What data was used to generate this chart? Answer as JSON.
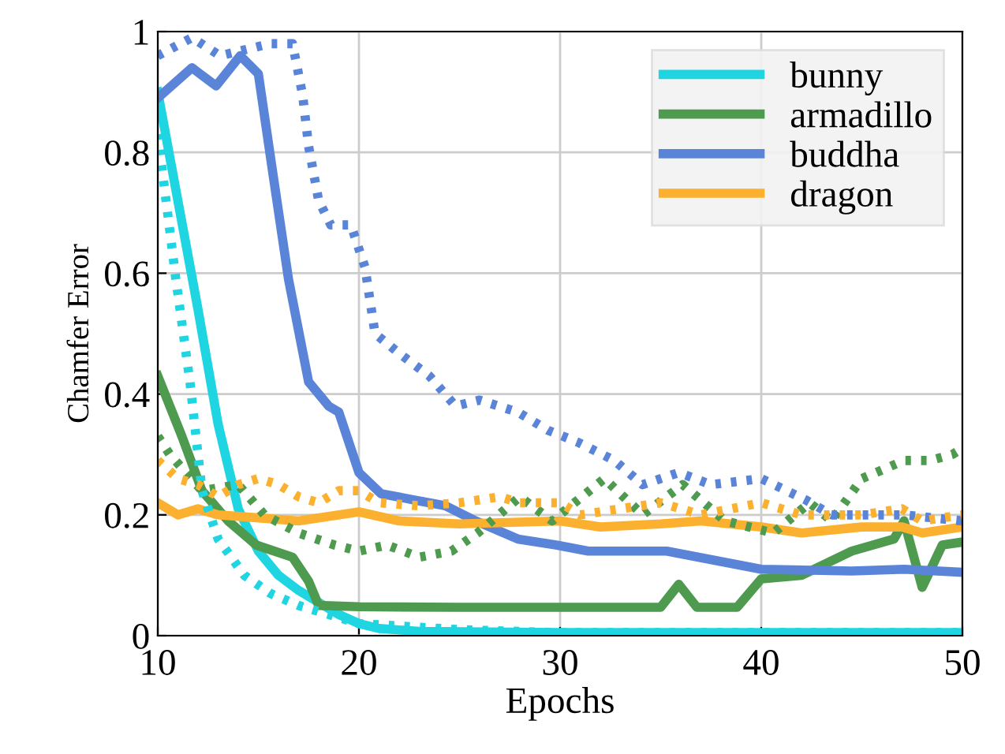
{
  "chart_data": {
    "type": "line",
    "xlabel": "Epochs",
    "ylabel": "Chamfer Error",
    "xlim": [
      10,
      50
    ],
    "ylim": [
      0,
      1
    ],
    "xticks": [
      10,
      20,
      30,
      40,
      50
    ],
    "yticks": [
      0,
      0.2,
      0.4,
      0.6,
      0.8,
      1
    ],
    "grid": true,
    "legend": "top right",
    "marker": "none",
    "series": [
      {
        "name": "bunny",
        "color": "#1fd5e2",
        "line_style": "solid",
        "x": [
          10,
          11,
          12,
          13,
          14,
          15,
          16,
          17,
          18,
          19,
          20,
          21,
          23,
          30,
          50
        ],
        "values": [
          0.9,
          0.72,
          0.54,
          0.35,
          0.21,
          0.14,
          0.1,
          0.075,
          0.055,
          0.035,
          0.02,
          0.012,
          0.007,
          0.005,
          0.005
        ]
      },
      {
        "name": "armadillo",
        "color": "#4e9a4f",
        "line_style": "solid",
        "x": [
          10,
          11.2,
          12.2,
          13.5,
          14.9,
          16.7,
          17.5,
          18,
          20,
          25,
          30,
          35,
          35.9,
          36.8,
          38.8,
          40,
          42,
          44.5,
          46.6,
          47.1,
          48,
          49,
          50
        ],
        "values": [
          0.43,
          0.33,
          0.24,
          0.19,
          0.15,
          0.13,
          0.09,
          0.05,
          0.048,
          0.047,
          0.047,
          0.047,
          0.085,
          0.047,
          0.047,
          0.094,
          0.1,
          0.14,
          0.16,
          0.19,
          0.08,
          0.15,
          0.155
        ]
      },
      {
        "name": "buddha",
        "color": "#5a84d8",
        "line_style": "solid",
        "x": [
          10,
          11.7,
          12.9,
          14.1,
          15,
          15.7,
          16.5,
          17.5,
          18.5,
          19,
          20,
          21.1,
          22.7,
          24.3,
          25.8,
          27.9,
          29.8,
          31.4,
          35.3,
          40,
          44.5,
          47.1,
          50
        ],
        "values": [
          0.89,
          0.94,
          0.91,
          0.96,
          0.93,
          0.77,
          0.59,
          0.42,
          0.38,
          0.37,
          0.27,
          0.235,
          0.225,
          0.215,
          0.19,
          0.16,
          0.15,
          0.14,
          0.14,
          0.11,
          0.107,
          0.11,
          0.105
        ]
      },
      {
        "name": "dragon",
        "color": "#fbb12f",
        "line_style": "solid",
        "x": [
          10,
          11,
          12,
          13,
          15,
          17,
          20,
          22,
          25,
          30,
          32,
          35,
          37,
          40,
          42,
          45,
          47,
          48,
          50
        ],
        "values": [
          0.22,
          0.2,
          0.21,
          0.2,
          0.195,
          0.19,
          0.205,
          0.19,
          0.185,
          0.19,
          0.18,
          0.185,
          0.19,
          0.18,
          0.17,
          0.18,
          0.18,
          0.17,
          0.18
        ]
      },
      {
        "color": "#1fd5e2",
        "line_style": "dotted",
        "x": [
          10,
          10.9,
          11.6,
          12.2,
          13,
          14.3,
          15.6,
          17,
          20,
          25,
          30,
          50
        ],
        "values": [
          0.83,
          0.59,
          0.42,
          0.24,
          0.16,
          0.1,
          0.07,
          0.05,
          0.02,
          0.01,
          0.005,
          0.005
        ]
      },
      {
        "color": "#4e9a4f",
        "line_style": "dotted",
        "x": [
          10,
          10.6,
          12.2,
          14,
          15.3,
          17,
          18.8,
          20,
          21.4,
          23,
          24.6,
          25.9,
          28,
          29.6,
          32.2,
          34.1,
          36.1,
          38.2,
          40.6,
          42.4,
          43.5,
          45,
          47.1,
          48.4,
          49.5,
          50
        ],
        "values": [
          0.33,
          0.3,
          0.24,
          0.25,
          0.2,
          0.17,
          0.15,
          0.14,
          0.15,
          0.13,
          0.14,
          0.17,
          0.23,
          0.19,
          0.26,
          0.2,
          0.25,
          0.19,
          0.17,
          0.22,
          0.19,
          0.26,
          0.29,
          0.29,
          0.3,
          0.31
        ]
      },
      {
        "color": "#5a84d8",
        "line_style": "dotted",
        "x": [
          10,
          11.7,
          13.1,
          15.6,
          16.7,
          17.2,
          17.5,
          18,
          18.6,
          19.6,
          20.3,
          20.8,
          21.9,
          23.5,
          24.8,
          26,
          27.9,
          29.4,
          30.9,
          32.7,
          34.1,
          35.9,
          37.5,
          40,
          42.2,
          43.5,
          47.1,
          50
        ],
        "values": [
          0.96,
          0.99,
          0.96,
          0.98,
          0.98,
          0.895,
          0.81,
          0.72,
          0.68,
          0.68,
          0.61,
          0.5,
          0.47,
          0.43,
          0.38,
          0.39,
          0.37,
          0.34,
          0.32,
          0.29,
          0.25,
          0.27,
          0.25,
          0.26,
          0.225,
          0.2,
          0.2,
          0.19
        ]
      },
      {
        "color": "#fbb12f",
        "line_style": "dotted",
        "x": [
          10,
          11,
          12,
          13,
          14,
          15,
          16,
          17,
          18,
          19,
          20,
          21,
          23,
          25,
          27,
          28,
          30,
          31,
          33,
          35,
          37,
          40,
          42,
          45,
          47,
          48,
          50
        ],
        "values": [
          0.29,
          0.26,
          0.25,
          0.23,
          0.25,
          0.26,
          0.25,
          0.23,
          0.22,
          0.24,
          0.24,
          0.22,
          0.215,
          0.22,
          0.23,
          0.22,
          0.22,
          0.2,
          0.21,
          0.22,
          0.2,
          0.22,
          0.2,
          0.2,
          0.21,
          0.19,
          0.2
        ]
      }
    ]
  }
}
